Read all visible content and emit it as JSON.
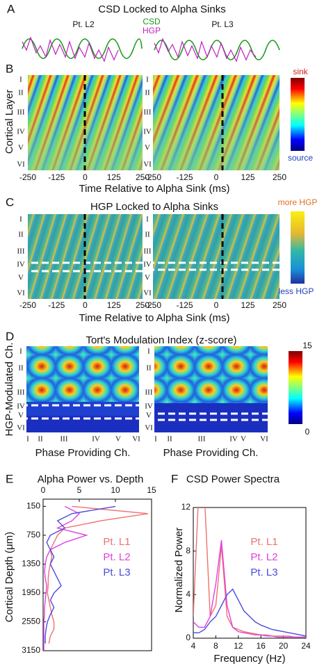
{
  "panels": {
    "A": {
      "label": "A",
      "title": "CSD Locked to Alpha Sinks",
      "legend": [
        "CSD",
        "HGP"
      ],
      "patients": [
        "Pt. L2",
        "Pt. L3"
      ]
    },
    "B": {
      "label": "B",
      "ylabel": "Cortical Layer",
      "layers": [
        "I",
        "II",
        "III",
        "IV",
        "V",
        "VI"
      ],
      "time_ticks": [
        -250,
        -125,
        0,
        125,
        250
      ],
      "xlabel": "Time Relative to Alpha Sink (ms)",
      "colorbar": [
        "sink",
        "source"
      ]
    },
    "C": {
      "label": "C",
      "title": "HGP Locked to Alpha Sinks",
      "colorbar": [
        "more HGP",
        "less HGP"
      ]
    },
    "D": {
      "label": "D",
      "title": "Tort's Modulation Index (z-score)",
      "ylabel": "HGP-Modulated Ch.",
      "xlabel": "Phase Providing Ch.",
      "colorbar": [
        15,
        0
      ]
    }
  },
  "chart_data": [
    {
      "label": "E",
      "type": "line",
      "orientation": "vertical",
      "title": "Alpha Power vs. Depth",
      "ylabel": "Cortical Depth (μm)",
      "y": [
        150,
        300,
        450,
        600,
        750,
        900,
        1050,
        1200,
        1350,
        1500,
        1650,
        1800,
        1950,
        2100,
        2250,
        2400,
        2550,
        2700,
        2850,
        3000,
        3150
      ],
      "series": [
        {
          "name": "Pt. L1",
          "color": "#f07070",
          "values": [
            4,
            14.5,
            8,
            3,
            2,
            1.5,
            1,
            1.2,
            1,
            0.8,
            0.7,
            0.7,
            0.6,
            0.8,
            1,
            1.2,
            1.5,
            1.5,
            1,
            0.8,
            null
          ]
        },
        {
          "name": "Pt. L2",
          "color": "#e040e0",
          "values": [
            3,
            5,
            4,
            2,
            6,
            3,
            1,
            0.5,
            0.3,
            0.2,
            0.3,
            0.5,
            0.4,
            0.3,
            0.2,
            0.2,
            0.1,
            0.1,
            0.1,
            0.1,
            0.1
          ]
        },
        {
          "name": "Pt. L3",
          "color": "#4a4ae0",
          "values": [
            10,
            4,
            2,
            3,
            1,
            0.5,
            1,
            1.5,
            1,
            1.5,
            2,
            2.5,
            1.5,
            1,
            1.5,
            1,
            0.6,
            0.4,
            0.3,
            0.3,
            null
          ]
        }
      ],
      "xlim": [
        0,
        15
      ],
      "xticks": [
        0,
        5,
        10,
        15
      ],
      "ylim": [
        0,
        3150
      ],
      "y_inverted": true,
      "yticks": [
        150,
        750,
        1350,
        1950,
        2550,
        3150
      ]
    },
    {
      "label": "F",
      "type": "line",
      "title": "CSD Power Spectra",
      "xlabel": "Frequency (Hz)",
      "ylabel": "Normalized Power",
      "x": [
        4,
        5,
        6,
        7,
        8,
        9,
        10,
        11,
        12,
        13,
        14,
        15,
        16,
        17,
        18,
        19,
        20,
        21,
        22,
        23,
        24
      ],
      "series": [
        {
          "name": "Pt. L1",
          "color": "#f07070",
          "values": [
            2,
            14,
            13,
            2,
            3,
            8.5,
            2,
            1,
            0.8,
            0.6,
            0.5,
            0.4,
            0.3,
            0.3,
            0.2,
            0.2,
            0.2,
            0.2,
            0.1,
            0.1,
            0.1
          ]
        },
        {
          "name": "Pt. L2",
          "color": "#e040e0",
          "values": [
            1.5,
            1,
            1,
            2,
            5,
            9,
            3,
            1,
            0.6,
            0.5,
            0.4,
            0.3,
            0.3,
            0.2,
            0.2,
            0.1,
            0.1,
            0.1,
            0.1,
            0.1,
            0.1
          ]
        },
        {
          "name": "Pt. L3",
          "color": "#4a4ae0",
          "values": [
            0.5,
            0.5,
            0.8,
            1.5,
            2,
            3,
            4,
            4.5,
            3.5,
            2.5,
            2,
            1.5,
            1.2,
            1,
            0.8,
            0.7,
            0.6,
            0.5,
            0.4,
            0.3,
            0.2
          ]
        }
      ],
      "xlim": [
        4,
        24
      ],
      "xticks": [
        4,
        8,
        12,
        16,
        20,
        24
      ],
      "ylim": [
        0,
        12
      ],
      "yticks": [
        0,
        4,
        8,
        12
      ]
    }
  ]
}
